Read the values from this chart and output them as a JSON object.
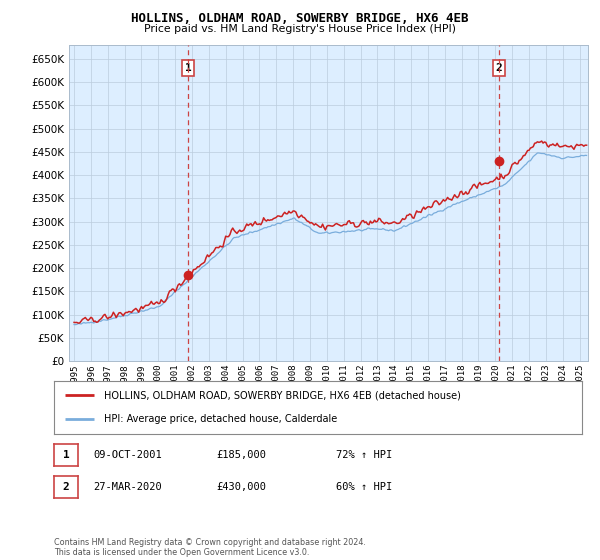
{
  "title": "HOLLINS, OLDHAM ROAD, SOWERBY BRIDGE, HX6 4EB",
  "subtitle": "Price paid vs. HM Land Registry's House Price Index (HPI)",
  "ylim": [
    0,
    680000
  ],
  "yticks": [
    0,
    50000,
    100000,
    150000,
    200000,
    250000,
    300000,
    350000,
    400000,
    450000,
    500000,
    550000,
    600000,
    650000
  ],
  "xlim_start": 1994.7,
  "xlim_end": 2025.5,
  "xtick_years": [
    1995,
    1996,
    1997,
    1998,
    1999,
    2000,
    2001,
    2002,
    2003,
    2004,
    2005,
    2006,
    2007,
    2008,
    2009,
    2010,
    2011,
    2012,
    2013,
    2014,
    2015,
    2016,
    2017,
    2018,
    2019,
    2020,
    2021,
    2022,
    2023,
    2024,
    2025
  ],
  "hpi_color": "#7aaddc",
  "price_color": "#cc2222",
  "vline_color": "#cc4444",
  "plot_bg_color": "#ddeeff",
  "sale1_year": 2001.77,
  "sale1_price": 185000,
  "sale2_year": 2020.23,
  "sale2_price": 430000,
  "legend_label1": "HOLLINS, OLDHAM ROAD, SOWERBY BRIDGE, HX6 4EB (detached house)",
  "legend_label2": "HPI: Average price, detached house, Calderdale",
  "table_row1_num": "1",
  "table_row1_date": "09-OCT-2001",
  "table_row1_price": "£185,000",
  "table_row1_hpi": "72% ↑ HPI",
  "table_row2_num": "2",
  "table_row2_date": "27-MAR-2020",
  "table_row2_price": "£430,000",
  "table_row2_hpi": "60% ↑ HPI",
  "footnote": "Contains HM Land Registry data © Crown copyright and database right 2024.\nThis data is licensed under the Open Government Licence v3.0.",
  "bg_color": "#ffffff",
  "grid_color": "#bbccdd"
}
